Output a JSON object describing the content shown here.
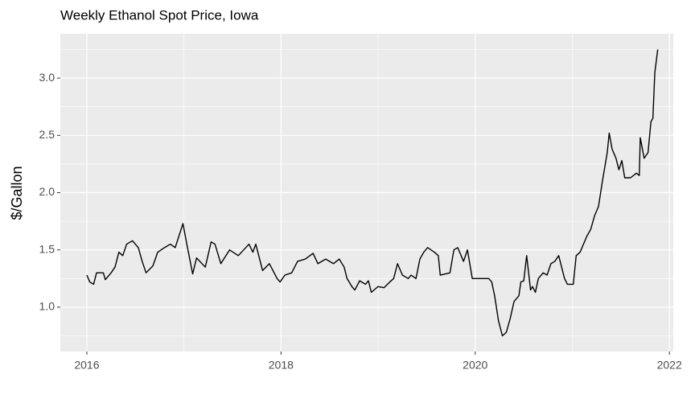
{
  "chart_data": {
    "type": "line",
    "title": "Weekly Ethanol Spot Price, Iowa",
    "ylabel": "$/Gallon",
    "x": [
      2016.0,
      2016.03,
      2016.07,
      2016.1,
      2016.17,
      2016.19,
      2016.25,
      2016.29,
      2016.33,
      2016.37,
      2016.41,
      2016.47,
      2016.53,
      2016.57,
      2016.61,
      2016.68,
      2016.73,
      2016.8,
      2016.86,
      2016.91,
      2016.99,
      2017.03,
      2017.09,
      2017.13,
      2017.22,
      2017.28,
      2017.32,
      2017.38,
      2017.47,
      2017.56,
      2017.67,
      2017.71,
      2017.74,
      2017.81,
      2017.88,
      2017.96,
      2017.99,
      2018.04,
      2018.11,
      2018.17,
      2018.25,
      2018.33,
      2018.38,
      2018.46,
      2018.54,
      2018.6,
      2018.65,
      2018.68,
      2018.73,
      2018.76,
      2018.81,
      2018.87,
      2018.9,
      2018.93,
      2019.0,
      2019.06,
      2019.12,
      2019.16,
      2019.2,
      2019.25,
      2019.31,
      2019.34,
      2019.39,
      2019.43,
      2019.47,
      2019.51,
      2019.58,
      2019.62,
      2019.64,
      2019.74,
      2019.78,
      2019.82,
      2019.88,
      2019.92,
      2019.97,
      2020.05,
      2020.14,
      2020.17,
      2020.2,
      2020.24,
      2020.28,
      2020.32,
      2020.36,
      2020.4,
      2020.45,
      2020.47,
      2020.5,
      2020.53,
      2020.57,
      2020.59,
      2020.62,
      2020.65,
      2020.7,
      2020.74,
      2020.78,
      2020.82,
      2020.86,
      2020.92,
      2020.95,
      2021.01,
      2021.04,
      2021.08,
      2021.15,
      2021.19,
      2021.23,
      2021.27,
      2021.31,
      2021.36,
      2021.38,
      2021.41,
      2021.45,
      2021.48,
      2021.51,
      2021.54,
      2021.6,
      2021.66,
      2021.69,
      2021.7,
      2021.74,
      2021.78,
      2021.81,
      2021.83,
      2021.85,
      2021.88
    ],
    "series": [
      {
        "color": "#000000",
        "values": [
          1.28,
          1.22,
          1.2,
          1.3,
          1.3,
          1.24,
          1.3,
          1.35,
          1.48,
          1.45,
          1.55,
          1.58,
          1.52,
          1.4,
          1.3,
          1.36,
          1.48,
          1.52,
          1.55,
          1.52,
          1.73,
          1.55,
          1.29,
          1.43,
          1.35,
          1.57,
          1.55,
          1.38,
          1.5,
          1.45,
          1.55,
          1.48,
          1.55,
          1.32,
          1.38,
          1.25,
          1.22,
          1.28,
          1.3,
          1.4,
          1.42,
          1.47,
          1.38,
          1.42,
          1.38,
          1.42,
          1.35,
          1.25,
          1.18,
          1.15,
          1.23,
          1.2,
          1.23,
          1.13,
          1.18,
          1.17,
          1.22,
          1.25,
          1.38,
          1.28,
          1.25,
          1.28,
          1.25,
          1.42,
          1.48,
          1.52,
          1.48,
          1.45,
          1.28,
          1.3,
          1.5,
          1.52,
          1.4,
          1.5,
          1.25,
          1.25,
          1.25,
          1.22,
          1.1,
          0.88,
          0.75,
          0.78,
          0.9,
          1.05,
          1.1,
          1.22,
          1.23,
          1.45,
          1.15,
          1.18,
          1.13,
          1.25,
          1.3,
          1.28,
          1.38,
          1.4,
          1.45,
          1.25,
          1.2,
          1.2,
          1.45,
          1.48,
          1.62,
          1.68,
          1.8,
          1.88,
          2.1,
          2.35,
          2.52,
          2.38,
          2.3,
          2.2,
          2.28,
          2.13,
          2.13,
          2.17,
          2.15,
          2.48,
          2.3,
          2.35,
          2.62,
          2.65,
          3.05,
          3.25
        ]
      }
    ],
    "xlim": [
      2015.727,
      2022.04
    ],
    "xticks": [
      2016,
      2018,
      2020,
      2022
    ],
    "x_minor_grid": [
      2017,
      2019,
      2021
    ],
    "ylim": [
      0.613,
      3.387
    ],
    "yticks": [
      {
        "value": 1,
        "label": "1.0"
      },
      1.5,
      {
        "value": 2,
        "label": "2.0"
      },
      2.5,
      {
        "value": 3,
        "label": "3.0"
      }
    ],
    "y_minor_grid": [
      0.75,
      1.25,
      1.75,
      2.25,
      2.75,
      3.25
    ],
    "grid": true
  }
}
